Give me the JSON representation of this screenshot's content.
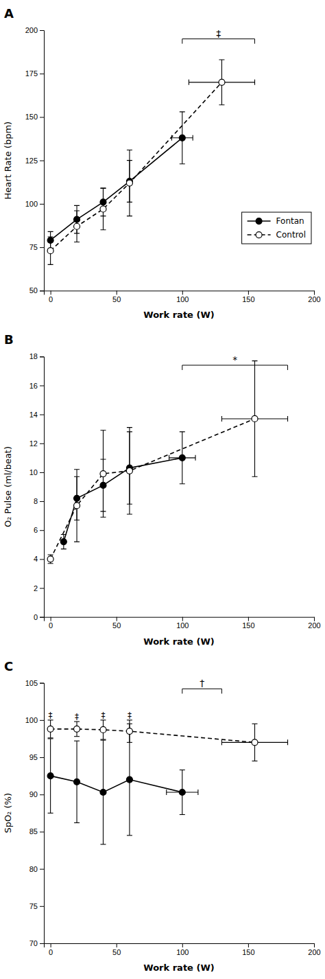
{
  "chart_data": [
    {
      "type": "line",
      "title": "A",
      "xlabel": "Work rate (W)",
      "ylabel": "Heart Rate (bpm)",
      "xlim": [
        -5,
        200
      ],
      "xticks": [
        0,
        50,
        100,
        150,
        200
      ],
      "ylim": [
        50,
        200
      ],
      "yticks": [
        50,
        75,
        100,
        125,
        150,
        175,
        200
      ],
      "grid": false,
      "legend": "lower right",
      "series": [
        {
          "name": "Fontan",
          "color": "#000000",
          "marker": "circle",
          "line_style": "solid",
          "x": [
            0,
            20,
            40,
            60,
            100
          ],
          "values": [
            79,
            91,
            101,
            113,
            138
          ],
          "xerr": [
            0,
            0,
            0,
            0,
            8
          ],
          "yerr": [
            5,
            8,
            8,
            12,
            15
          ]
        },
        {
          "name": "Control",
          "color": "#000000",
          "marker": "circle-open",
          "line_style": "dashed",
          "x": [
            0,
            20,
            40,
            60,
            130
          ],
          "values": [
            73,
            87,
            97,
            112,
            170
          ],
          "xerr": [
            0,
            0,
            0,
            0,
            25
          ],
          "yerr": [
            8,
            9,
            12,
            19,
            13
          ]
        }
      ],
      "annotations": [
        {
          "text": "‡",
          "x1": 100,
          "x2": 155,
          "y": 195
        }
      ]
    },
    {
      "type": "line",
      "title": "B",
      "xlabel": "Work rate (W)",
      "ylabel": "O₂ Pulse (ml/beat)",
      "xlim": [
        -5,
        200
      ],
      "xticks": [
        0,
        50,
        100,
        150,
        200
      ],
      "ylim": [
        0,
        18
      ],
      "yticks": [
        0,
        2,
        4,
        6,
        8,
        10,
        12,
        14,
        16,
        18
      ],
      "grid": false,
      "series": [
        {
          "name": "Fontan",
          "color": "#000000",
          "marker": "circle",
          "line_style": "solid",
          "x": [
            10,
            20,
            40,
            60,
            100
          ],
          "values": [
            5.2,
            8.2,
            9.1,
            10.3,
            11.0
          ],
          "xerr": [
            0,
            0,
            0,
            0,
            10
          ],
          "yerr": [
            0.5,
            1.5,
            1.8,
            2.5,
            1.8
          ]
        },
        {
          "name": "Control",
          "color": "#000000",
          "marker": "circle-open",
          "line_style": "dashed",
          "x": [
            0,
            20,
            40,
            60,
            155
          ],
          "values": [
            4.0,
            7.7,
            9.9,
            10.1,
            13.7
          ],
          "xerr": [
            0,
            0,
            0,
            0,
            25
          ],
          "yerr": [
            0.3,
            2.5,
            3.0,
            3.0,
            4.0
          ]
        }
      ],
      "annotations": [
        {
          "text": "*",
          "x1": 100,
          "x2": 180,
          "y": 17.4
        }
      ]
    },
    {
      "type": "line",
      "title": "C",
      "xlabel": "Work rate (W)",
      "ylabel": "SpO₂ (%)",
      "xlim": [
        -5,
        200
      ],
      "xticks": [
        0,
        50,
        100,
        150,
        200
      ],
      "ylim": [
        70,
        105
      ],
      "yticks": [
        70,
        75,
        80,
        85,
        90,
        95,
        100,
        105
      ],
      "grid": false,
      "series": [
        {
          "name": "Fontan",
          "color": "#000000",
          "marker": "circle",
          "line_style": "solid",
          "x": [
            0,
            20,
            40,
            60,
            100
          ],
          "values": [
            92.5,
            91.7,
            90.3,
            92.0,
            90.3
          ],
          "xerr": [
            0,
            0,
            0,
            0,
            12
          ],
          "yerr": [
            5.0,
            5.5,
            7.0,
            7.5,
            3.0
          ]
        },
        {
          "name": "Control",
          "color": "#000000",
          "marker": "circle-open",
          "line_style": "dashed",
          "x": [
            0,
            20,
            40,
            60,
            155
          ],
          "values": [
            98.8,
            98.8,
            98.7,
            98.5,
            97.0
          ],
          "xerr": [
            0,
            0,
            0,
            0,
            25
          ],
          "yerr": [
            1.2,
            1.0,
            1.3,
            1.5,
            2.5
          ]
        }
      ],
      "annotations": [
        {
          "text": "†",
          "x1": 100,
          "x2": 130,
          "y": 104.2
        },
        {
          "text": "‡",
          "x": 0,
          "y": 100.25
        },
        {
          "text": "‡",
          "x": 20,
          "y": 100.05
        },
        {
          "text": "‡",
          "x": 40,
          "y": 100.25
        },
        {
          "text": "‡",
          "x": 60,
          "y": 100.25
        }
      ]
    }
  ]
}
